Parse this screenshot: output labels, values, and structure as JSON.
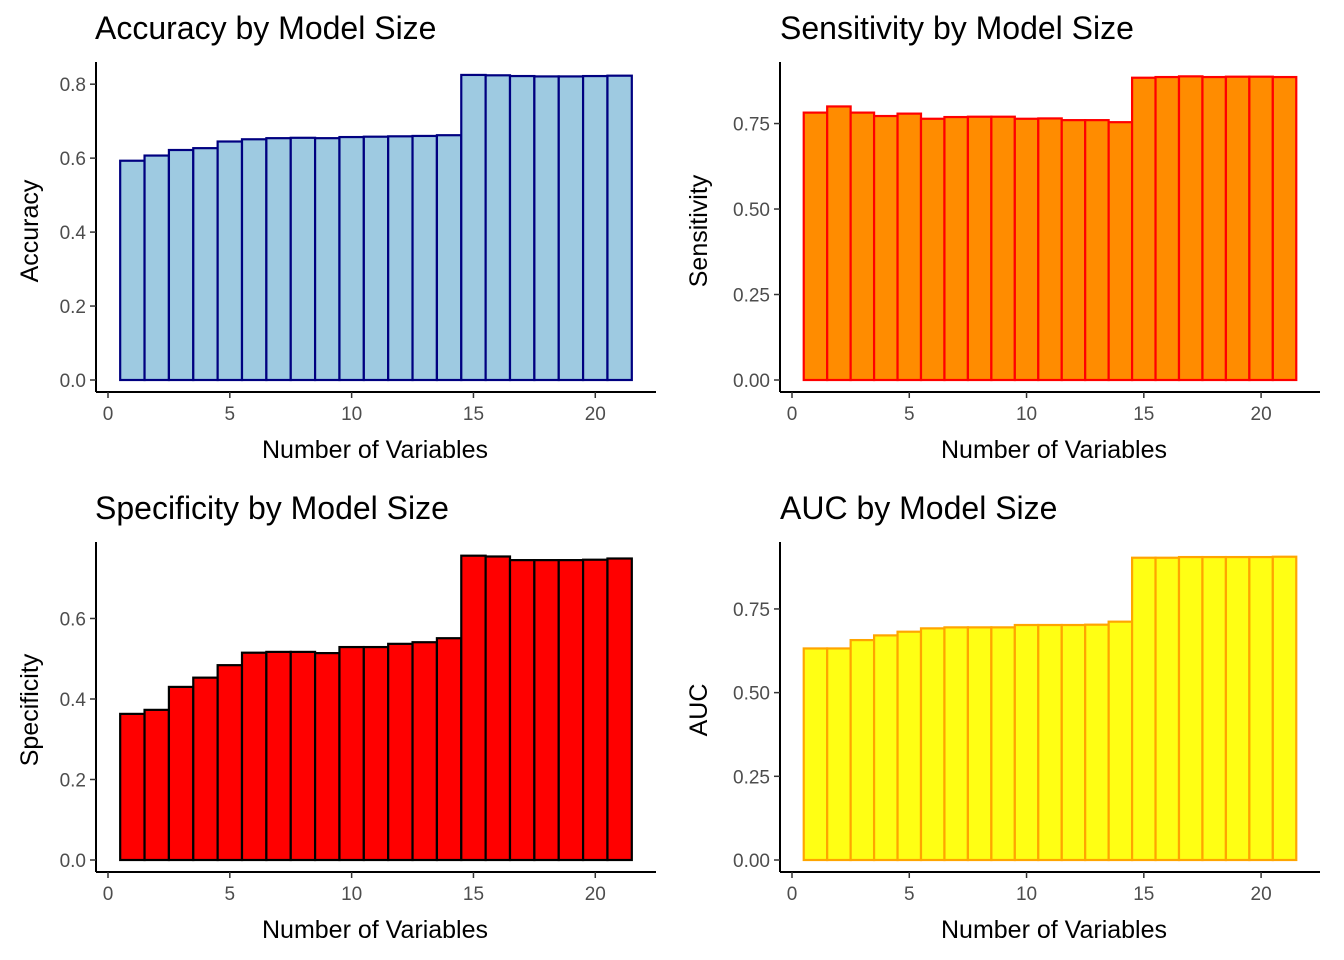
{
  "chart_data": [
    {
      "type": "bar",
      "title": "Accuracy by Model Size",
      "xlabel": "Number of Variables",
      "ylabel": "Accuracy",
      "fill": "#9ECAE1",
      "stroke": "#000080",
      "x": [
        1,
        2,
        3,
        4,
        5,
        6,
        7,
        8,
        9,
        10,
        11,
        12,
        13,
        14,
        15,
        16,
        17,
        18,
        19,
        20,
        21
      ],
      "values": [
        0.593,
        0.607,
        0.622,
        0.627,
        0.645,
        0.651,
        0.654,
        0.655,
        0.654,
        0.657,
        0.658,
        0.659,
        0.66,
        0.662,
        0.825,
        0.824,
        0.822,
        0.821,
        0.821,
        0.822,
        0.823
      ],
      "xlim": [
        0,
        22
      ],
      "ylim": [
        0,
        0.86
      ],
      "xticks": [
        0,
        5,
        10,
        15,
        20
      ],
      "yticks": [
        0.0,
        0.2,
        0.4,
        0.6,
        0.8
      ],
      "ytick_labels": [
        "0.0",
        "0.2",
        "0.4",
        "0.6",
        "0.8"
      ],
      "grid": false
    },
    {
      "type": "bar",
      "title": "Sensitivity by Model Size",
      "xlabel": "Number of Variables",
      "ylabel": "Sensitivity",
      "fill": "#FF8C00",
      "stroke": "#FF0000",
      "x": [
        1,
        2,
        3,
        4,
        5,
        6,
        7,
        8,
        9,
        10,
        11,
        12,
        13,
        14,
        15,
        16,
        17,
        18,
        19,
        20,
        21
      ],
      "values": [
        0.782,
        0.8,
        0.782,
        0.772,
        0.779,
        0.764,
        0.769,
        0.77,
        0.77,
        0.764,
        0.765,
        0.76,
        0.76,
        0.754,
        0.884,
        0.886,
        0.888,
        0.886,
        0.887,
        0.887,
        0.886
      ],
      "xlim": [
        0,
        22
      ],
      "ylim": [
        0,
        0.93
      ],
      "xticks": [
        0,
        5,
        10,
        15,
        20
      ],
      "yticks": [
        0.0,
        0.25,
        0.5,
        0.75
      ],
      "ytick_labels": [
        "0.00",
        "0.25",
        "0.50",
        "0.75"
      ],
      "grid": false
    },
    {
      "type": "bar",
      "title": "Specificity by Model Size",
      "xlabel": "Number of Variables",
      "ylabel": "Specificity",
      "fill": "#FF0000",
      "stroke": "#000000",
      "x": [
        1,
        2,
        3,
        4,
        5,
        6,
        7,
        8,
        9,
        10,
        11,
        12,
        13,
        14,
        15,
        16,
        17,
        18,
        19,
        20,
        21
      ],
      "values": [
        0.363,
        0.373,
        0.43,
        0.453,
        0.484,
        0.515,
        0.517,
        0.517,
        0.514,
        0.529,
        0.529,
        0.537,
        0.541,
        0.551,
        0.756,
        0.754,
        0.745,
        0.745,
        0.745,
        0.746,
        0.749
      ],
      "xlim": [
        0,
        22
      ],
      "ylim": [
        0,
        0.79
      ],
      "xticks": [
        0,
        5,
        10,
        15,
        20
      ],
      "yticks": [
        0.0,
        0.2,
        0.4,
        0.6
      ],
      "ytick_labels": [
        "0.0",
        "0.2",
        "0.4",
        "0.6"
      ],
      "grid": false
    },
    {
      "type": "bar",
      "title": "AUC by Model Size",
      "xlabel": "Number of Variables",
      "ylabel": "AUC",
      "fill": "#FFFF14",
      "stroke": "#FFA500",
      "x": [
        1,
        2,
        3,
        4,
        5,
        6,
        7,
        8,
        9,
        10,
        11,
        12,
        13,
        14,
        15,
        16,
        17,
        18,
        19,
        20,
        21
      ],
      "values": [
        0.632,
        0.632,
        0.657,
        0.671,
        0.682,
        0.692,
        0.695,
        0.695,
        0.695,
        0.702,
        0.702,
        0.702,
        0.703,
        0.712,
        0.903,
        0.903,
        0.905,
        0.905,
        0.905,
        0.905,
        0.906
      ],
      "xlim": [
        0,
        22
      ],
      "ylim": [
        0,
        0.95
      ],
      "xticks": [
        0,
        5,
        10,
        15,
        20
      ],
      "yticks": [
        0.0,
        0.25,
        0.5,
        0.75
      ],
      "ytick_labels": [
        "0.00",
        "0.25",
        "0.50",
        "0.75"
      ],
      "grid": false
    }
  ]
}
